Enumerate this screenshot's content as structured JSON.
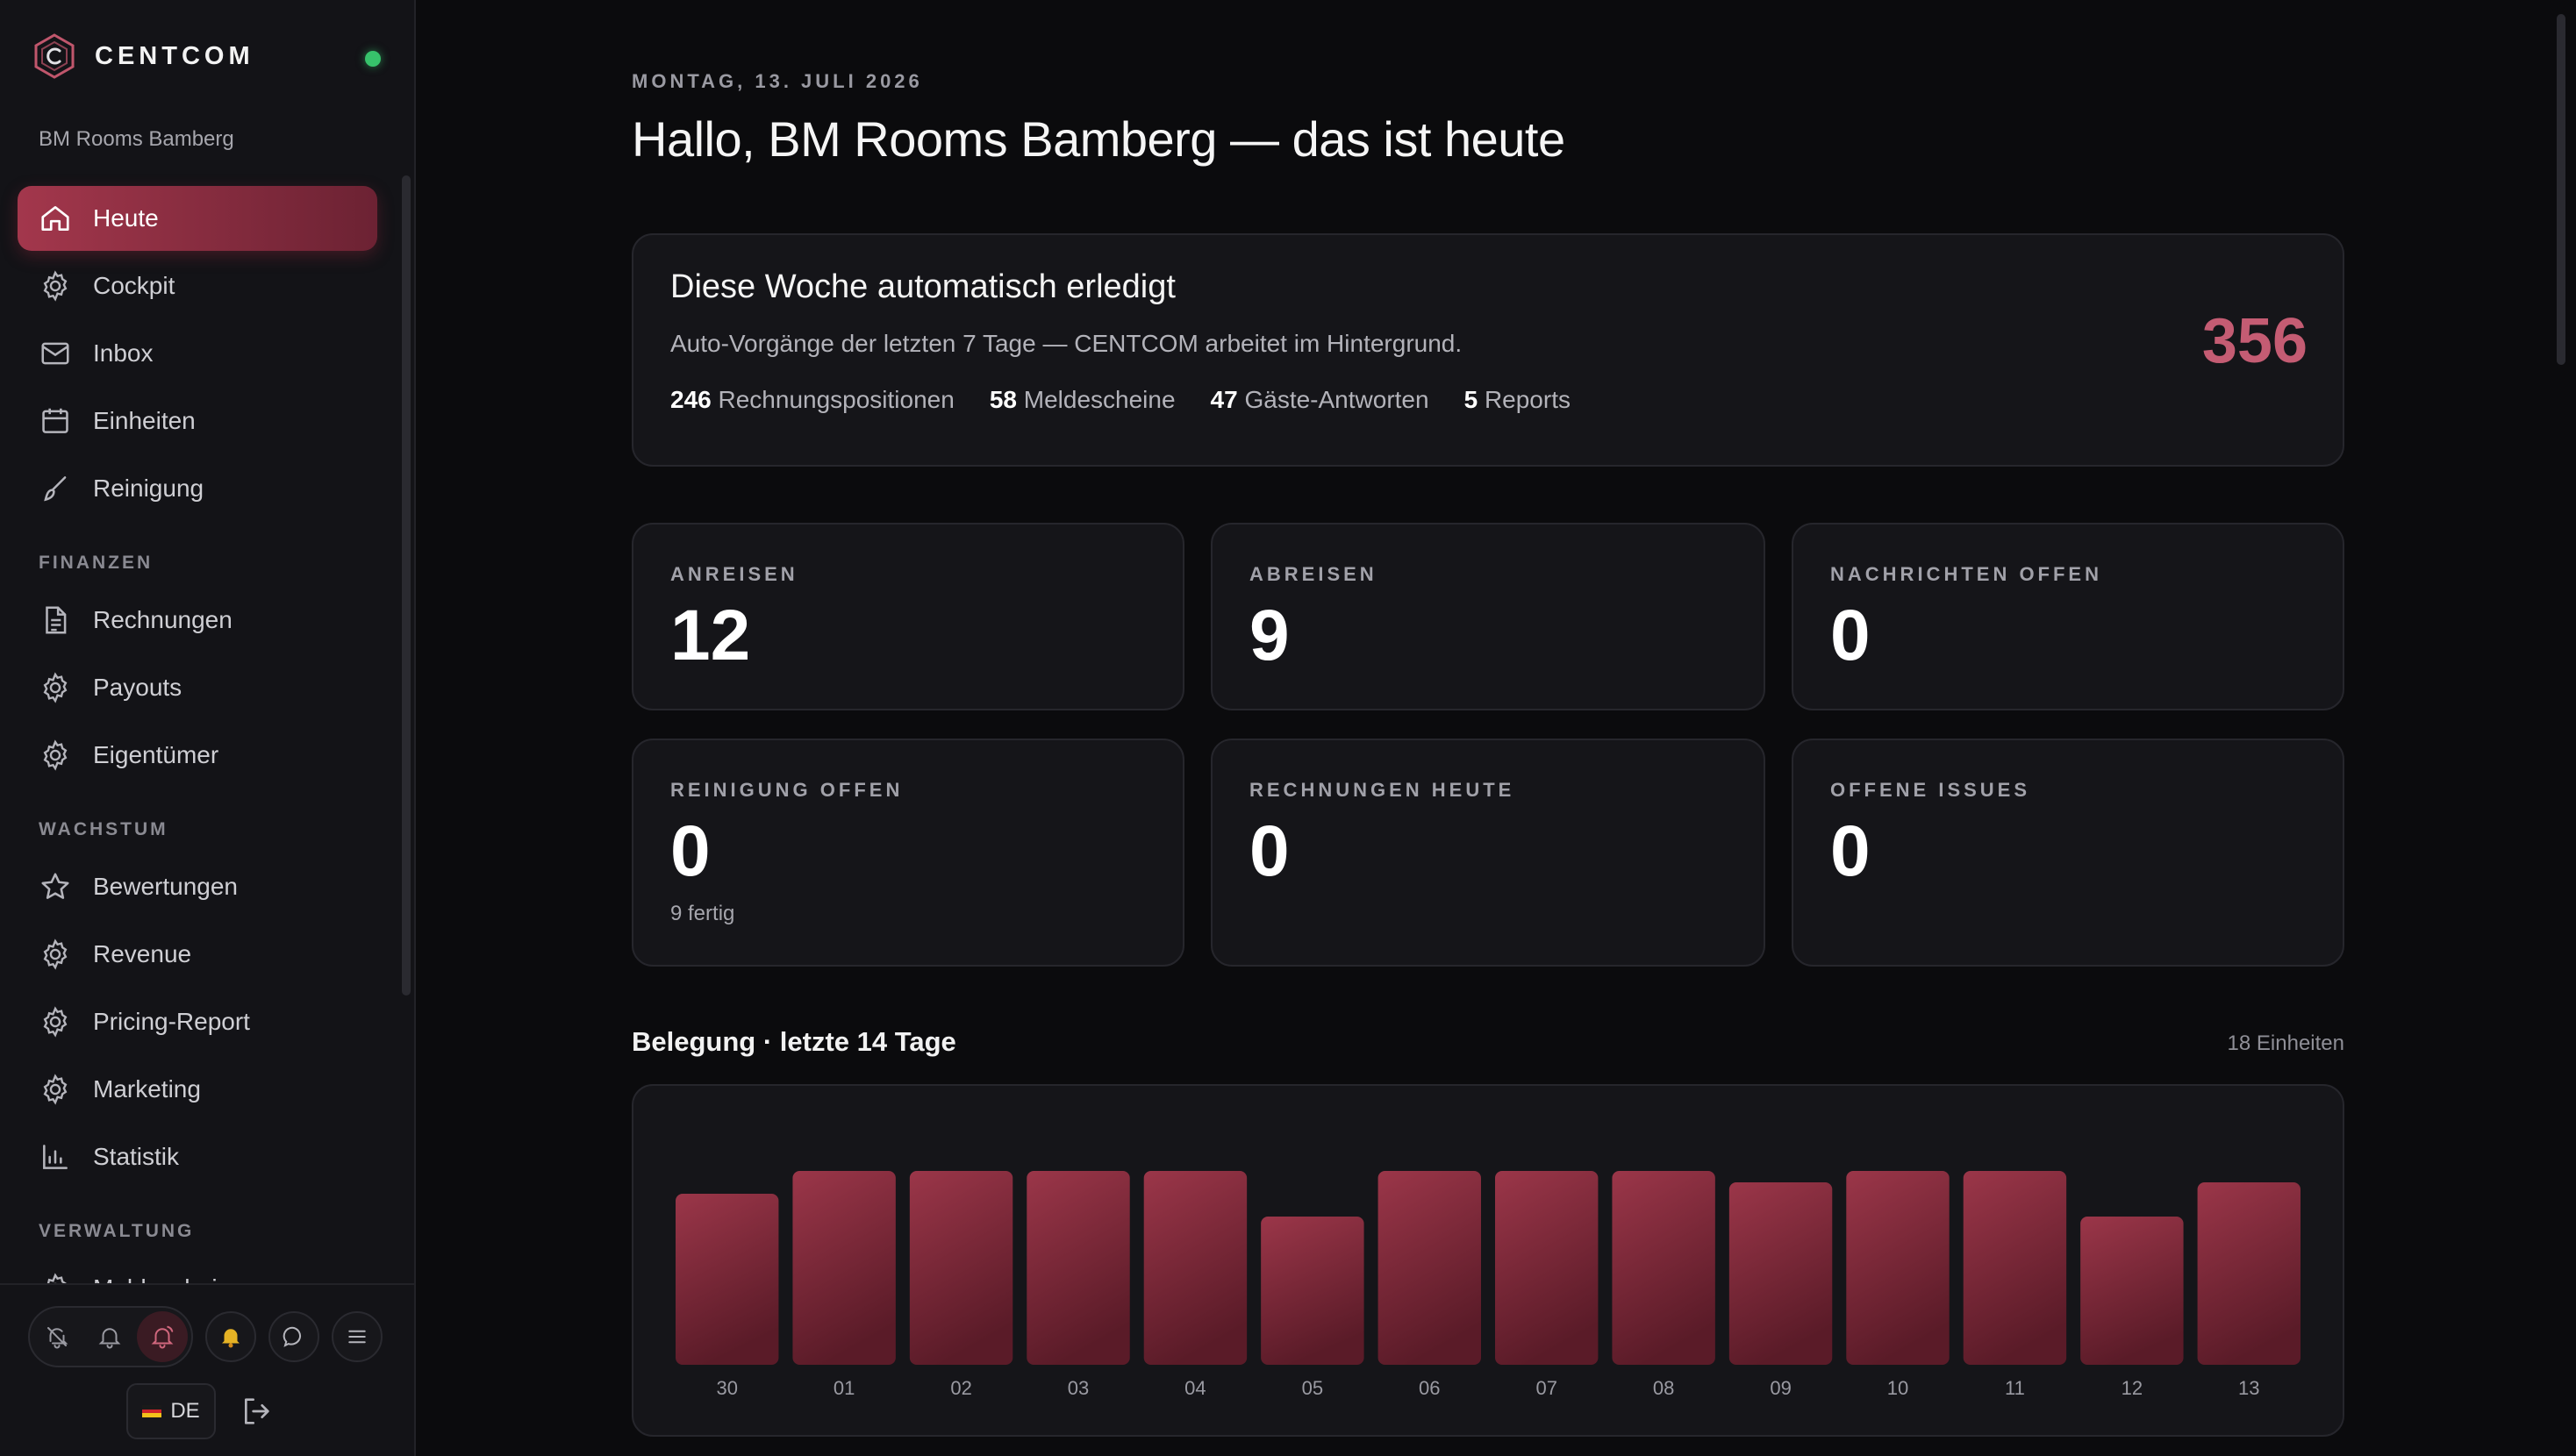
{
  "brand": {
    "name": "CENTCOM",
    "org": "BM Rooms Bamberg"
  },
  "nav": {
    "items": [
      {
        "label": "Heute",
        "icon": "home-icon",
        "active": true
      },
      {
        "label": "Cockpit",
        "icon": "gear-icon"
      },
      {
        "label": "Inbox",
        "icon": "mail-icon"
      },
      {
        "label": "Einheiten",
        "icon": "calendar-icon"
      },
      {
        "label": "Reinigung",
        "icon": "brush-icon"
      }
    ],
    "finanzen_label": "FINANZEN",
    "finanzen": [
      {
        "label": "Rechnungen",
        "icon": "document-icon"
      },
      {
        "label": "Payouts",
        "icon": "gear-icon"
      },
      {
        "label": "Eigentümer",
        "icon": "gear-icon"
      }
    ],
    "wachstum_label": "WACHSTUM",
    "wachstum": [
      {
        "label": "Bewertungen",
        "icon": "star-icon"
      },
      {
        "label": "Revenue",
        "icon": "gear-icon"
      },
      {
        "label": "Pricing-Report",
        "icon": "gear-icon"
      },
      {
        "label": "Marketing",
        "icon": "gear-icon"
      },
      {
        "label": "Statistik",
        "icon": "bar-chart-icon"
      }
    ],
    "verwaltung_label": "VERWALTUNG",
    "verwaltung_first": "Meldescheine"
  },
  "footer": {
    "language": "DE"
  },
  "header": {
    "date": "MONTAG, 13. JULI 2026",
    "greeting": "Hallo, BM Rooms Bamberg — das ist heute"
  },
  "automation": {
    "title": "Diese Woche automatisch erledigt",
    "subtitle": "Auto-Vorgänge der letzten 7 Tage — CENTCOM arbeitet im Hintergrund.",
    "total": "356",
    "stats": [
      {
        "value": "246",
        "label": "Rechnungspositionen"
      },
      {
        "value": "58",
        "label": "Meldescheine"
      },
      {
        "value": "47",
        "label": "Gäste-Antworten"
      },
      {
        "value": "5",
        "label": "Reports"
      }
    ]
  },
  "kpis": [
    {
      "label": "ANREISEN",
      "value": "12",
      "sub": ""
    },
    {
      "label": "ABREISEN",
      "value": "9",
      "sub": ""
    },
    {
      "label": "NACHRICHTEN OFFEN",
      "value": "0",
      "sub": ""
    },
    {
      "label": "REINIGUNG OFFEN",
      "value": "0",
      "sub": "9 fertig"
    },
    {
      "label": "RECHNUNGEN HEUTE",
      "value": "0",
      "sub": ""
    },
    {
      "label": "OFFENE ISSUES",
      "value": "0",
      "sub": ""
    }
  ],
  "occupancy": {
    "title": "Belegung · letzte 14 Tage",
    "meta": "18 Einheiten"
  },
  "chart_data": {
    "type": "bar",
    "title": "Belegung · letzte 14 Tage",
    "categories": [
      "30",
      "01",
      "02",
      "03",
      "04",
      "05",
      "06",
      "07",
      "08",
      "09",
      "10",
      "11",
      "12",
      "13"
    ],
    "values": [
      15,
      17,
      17,
      17,
      17,
      13,
      17,
      17,
      17,
      16,
      17,
      17,
      13,
      16
    ],
    "ylim": [
      0,
      18
    ],
    "grid": false,
    "colors": {
      "bar_top": "#9b3649",
      "bar_bottom": "#5a1b28",
      "tick": "#9a9aa2"
    }
  },
  "colors": {
    "accent": "#a3374c",
    "total": "#c45c73",
    "status": "#37c26b"
  }
}
